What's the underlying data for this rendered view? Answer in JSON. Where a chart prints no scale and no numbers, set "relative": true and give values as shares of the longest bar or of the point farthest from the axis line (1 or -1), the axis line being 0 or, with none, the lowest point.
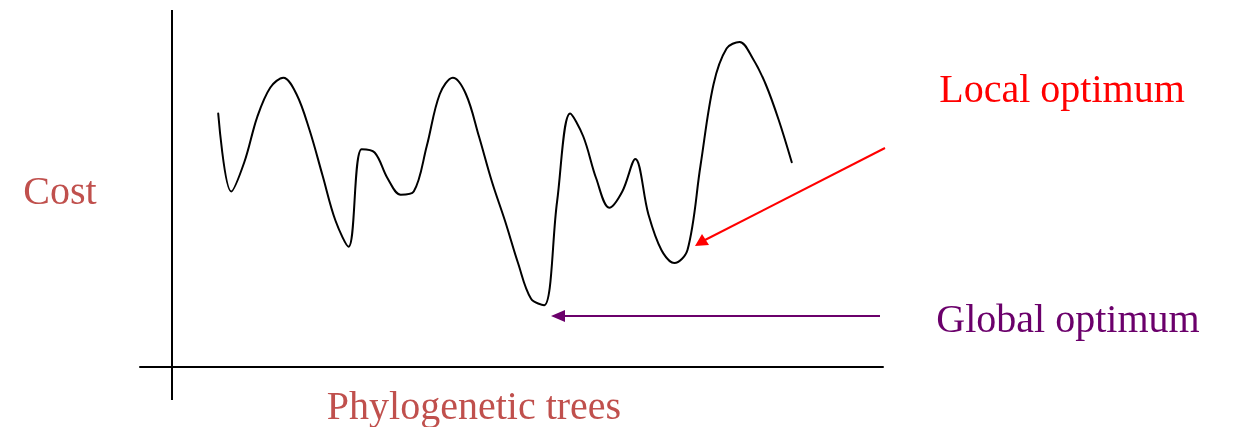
{
  "chart_data": {
    "type": "line",
    "relative": true,
    "ylabel": "Cost",
    "xlabel": "Phylogenetic trees",
    "marker": "none",
    "line_style": "solid",
    "annotations": [
      "Local optimum",
      "Global optimum"
    ],
    "categories": [
      null,
      null,
      null,
      null,
      null,
      null,
      null,
      null,
      null,
      null,
      null,
      null,
      null,
      null,
      null,
      null,
      null,
      null,
      null,
      null,
      null,
      null,
      null,
      null,
      null,
      null,
      null,
      null,
      null,
      null,
      null,
      null,
      null,
      null,
      null,
      null,
      null,
      null,
      null,
      null,
      null,
      null,
      null,
      null,
      null,
      null,
      null,
      null,
      null,
      null,
      null,
      null,
      null,
      null,
      null,
      null,
      null,
      null
    ],
    "series": [
      {
        "color": "#000000",
        "values": [
          null,
          null,
          null,
          null,
          null,
          null,
          0.78,
          0.54,
          0.63,
          0.77,
          0.86,
          0.89,
          0.84,
          0.73,
          0.59,
          0.45,
          0.37,
          0.67,
          0.66,
          0.58,
          0.53,
          0.54,
          0.68,
          0.84,
          0.89,
          0.84,
          0.71,
          0.57,
          0.45,
          0.32,
          0.21,
          0.19,
          0.51,
          0.78,
          0.71,
          0.58,
          0.49,
          0.54,
          0.64,
          0.47,
          0.36,
          0.32,
          0.36,
          0.62,
          0.87,
          0.98,
          1.0,
          0.95,
          0.87,
          0.76,
          0.63,
          null,
          null,
          null,
          null,
          null,
          null,
          null
        ]
      }
    ]
  }
}
